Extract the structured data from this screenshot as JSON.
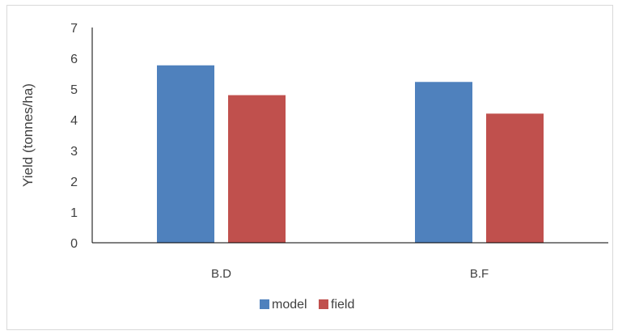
{
  "chart_data": {
    "type": "bar",
    "title": "",
    "xlabel": "",
    "ylabel": "Yield (tonnes/ha)",
    "categories": [
      "B.D",
      "B.F"
    ],
    "series": [
      {
        "name": "model",
        "values": [
          5.77,
          5.23
        ],
        "color": "#4f81bd"
      },
      {
        "name": "field",
        "values": [
          4.8,
          4.2
        ],
        "color": "#c0504d"
      }
    ],
    "ylim": [
      0,
      7
    ],
    "yticks": [
      0,
      1,
      2,
      3,
      4,
      5,
      6,
      7
    ],
    "grid": false,
    "legend_position": "bottom"
  }
}
